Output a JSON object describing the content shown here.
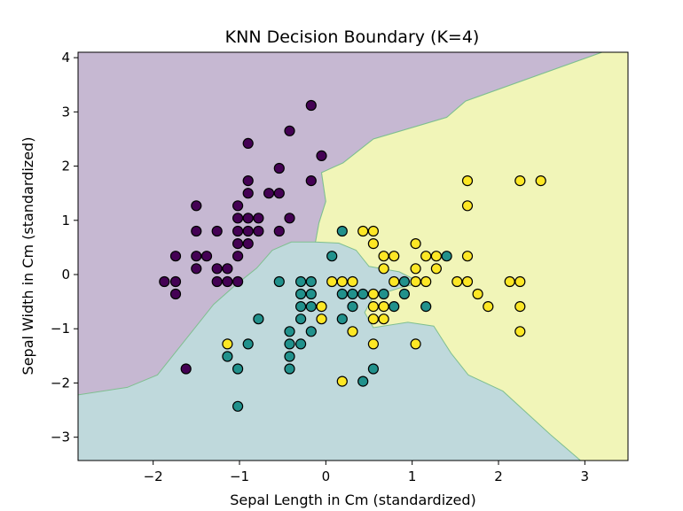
{
  "chart_data": {
    "type": "scatter",
    "title": "KNN Decision Boundary (K=4)",
    "xlabel": "Sepal Length in Cm (standardized)",
    "ylabel": "Sepal Width in Cm (standardized)",
    "xlim": [
      -2.87,
      3.5
    ],
    "ylim": [
      -3.43,
      4.1
    ],
    "x_ticks": [
      -2,
      -1,
      0,
      1,
      2,
      3
    ],
    "y_ticks": [
      -3,
      -2,
      -1,
      0,
      1,
      2,
      3,
      4
    ],
    "x_tick_labels": [
      "−2",
      "−1",
      "0",
      "1",
      "2",
      "3"
    ],
    "y_tick_labels": [
      "−3",
      "−2",
      "−1",
      "0",
      "1",
      "2",
      "3",
      "4"
    ],
    "grid": false,
    "legend": "none",
    "colors": {
      "class_0_point": "#440154",
      "class_1_point": "#21918c",
      "class_2_point": "#fde725",
      "class_0_region": "#c6b8d2",
      "class_1_region": "#bfd9dc",
      "class_2_region": "#f1f5b8",
      "region_edge": "#7fbf90"
    },
    "regions": [
      {
        "class": 0,
        "points": [
          [
            -2.87,
            -2.22
          ],
          [
            -2.87,
            4.1
          ],
          [
            3.2,
            4.1
          ],
          [
            1.62,
            3.2
          ],
          [
            1.4,
            2.9
          ],
          [
            0.55,
            2.5
          ],
          [
            0.2,
            2.06
          ],
          [
            -0.05,
            1.88
          ],
          [
            0.0,
            1.35
          ],
          [
            -0.08,
            0.95
          ],
          [
            -0.12,
            0.6
          ],
          [
            -0.4,
            0.6
          ],
          [
            -0.62,
            0.45
          ],
          [
            -0.8,
            0.12
          ],
          [
            -1.05,
            -0.2
          ],
          [
            -1.3,
            -0.55
          ],
          [
            -1.55,
            -1.05
          ],
          [
            -1.95,
            -1.85
          ],
          [
            -2.3,
            -2.08
          ]
        ]
      },
      {
        "class": 2,
        "points": [
          [
            3.2,
            4.1
          ],
          [
            3.5,
            4.1
          ],
          [
            3.5,
            -3.43
          ],
          [
            2.95,
            -3.43
          ],
          [
            2.6,
            -2.95
          ],
          [
            2.05,
            -2.15
          ],
          [
            1.65,
            -1.85
          ],
          [
            1.45,
            -1.45
          ],
          [
            1.25,
            -0.95
          ],
          [
            0.95,
            -0.88
          ],
          [
            0.55,
            -0.98
          ],
          [
            0.45,
            -0.7
          ],
          [
            0.55,
            -0.4
          ],
          [
            0.85,
            -0.25
          ],
          [
            1.1,
            -0.15
          ],
          [
            0.85,
            0.05
          ],
          [
            0.5,
            0.15
          ],
          [
            0.35,
            0.45
          ],
          [
            0.15,
            0.58
          ],
          [
            -0.12,
            0.6
          ],
          [
            -0.08,
            0.95
          ],
          [
            0.0,
            1.35
          ],
          [
            -0.05,
            1.88
          ],
          [
            0.2,
            2.06
          ],
          [
            0.55,
            2.5
          ],
          [
            1.4,
            2.9
          ],
          [
            1.62,
            3.2
          ]
        ]
      }
    ],
    "series": [
      {
        "class": 0,
        "points": [
          [
            -0.17,
            3.12
          ],
          [
            -0.42,
            2.65
          ],
          [
            -0.9,
            2.42
          ],
          [
            -0.54,
            1.96
          ],
          [
            -0.05,
            2.19
          ],
          [
            -0.17,
            1.73
          ],
          [
            -0.9,
            1.73
          ],
          [
            -0.9,
            1.5
          ],
          [
            -0.66,
            1.5
          ],
          [
            -0.54,
            1.5
          ],
          [
            -1.5,
            1.27
          ],
          [
            -1.02,
            1.27
          ],
          [
            -1.02,
            1.04
          ],
          [
            -0.9,
            1.04
          ],
          [
            -0.78,
            1.04
          ],
          [
            -0.42,
            1.04
          ],
          [
            -1.5,
            0.8
          ],
          [
            -1.26,
            0.8
          ],
          [
            -1.02,
            0.8
          ],
          [
            -0.9,
            0.8
          ],
          [
            -0.78,
            0.8
          ],
          [
            -0.54,
            0.8
          ],
          [
            -1.02,
            0.57
          ],
          [
            -0.9,
            0.57
          ],
          [
            -1.74,
            0.34
          ],
          [
            -1.5,
            0.34
          ],
          [
            -1.38,
            0.34
          ],
          [
            -1.02,
            0.34
          ],
          [
            -1.5,
            0.11
          ],
          [
            -1.26,
            0.11
          ],
          [
            -1.14,
            0.11
          ],
          [
            -1.26,
            -0.13
          ],
          [
            -1.14,
            -0.13
          ],
          [
            -1.02,
            -0.13
          ],
          [
            -1.87,
            -0.13
          ],
          [
            -1.74,
            -0.13
          ],
          [
            -1.74,
            -0.36
          ],
          [
            -1.62,
            -1.74
          ]
        ]
      },
      {
        "class": 1,
        "points": [
          [
            0.19,
            0.8
          ],
          [
            0.07,
            0.34
          ],
          [
            1.4,
            0.34
          ],
          [
            -0.54,
            -0.13
          ],
          [
            -0.29,
            -0.13
          ],
          [
            -0.17,
            -0.13
          ],
          [
            0.91,
            -0.13
          ],
          [
            -0.29,
            -0.36
          ],
          [
            -0.17,
            -0.36
          ],
          [
            0.19,
            -0.36
          ],
          [
            0.31,
            -0.36
          ],
          [
            0.43,
            -0.36
          ],
          [
            0.67,
            -0.36
          ],
          [
            0.91,
            -0.36
          ],
          [
            -0.29,
            -0.59
          ],
          [
            -0.17,
            -0.59
          ],
          [
            0.31,
            -0.59
          ],
          [
            0.79,
            -0.59
          ],
          [
            1.16,
            -0.59
          ],
          [
            -0.78,
            -0.82
          ],
          [
            -0.29,
            -0.82
          ],
          [
            0.19,
            -0.82
          ],
          [
            -0.42,
            -1.05
          ],
          [
            -0.17,
            -1.05
          ],
          [
            -0.42,
            -1.28
          ],
          [
            -0.29,
            -1.28
          ],
          [
            -0.9,
            -1.28
          ],
          [
            -1.14,
            -1.51
          ],
          [
            -0.42,
            -1.51
          ],
          [
            -1.02,
            -1.74
          ],
          [
            -0.42,
            -1.74
          ],
          [
            0.55,
            -1.74
          ],
          [
            0.43,
            -1.97
          ],
          [
            -1.02,
            -2.43
          ]
        ]
      },
      {
        "class": 2,
        "points": [
          [
            1.64,
            1.73
          ],
          [
            2.25,
            1.73
          ],
          [
            2.49,
            1.73
          ],
          [
            1.64,
            1.27
          ],
          [
            0.43,
            0.8
          ],
          [
            0.55,
            0.8
          ],
          [
            0.55,
            0.57
          ],
          [
            1.04,
            0.57
          ],
          [
            0.67,
            0.34
          ],
          [
            0.79,
            0.34
          ],
          [
            1.16,
            0.34
          ],
          [
            1.28,
            0.34
          ],
          [
            1.64,
            0.34
          ],
          [
            0.67,
            0.11
          ],
          [
            1.04,
            0.11
          ],
          [
            1.28,
            0.11
          ],
          [
            0.07,
            -0.13
          ],
          [
            0.19,
            -0.13
          ],
          [
            0.31,
            -0.13
          ],
          [
            0.79,
            -0.13
          ],
          [
            1.04,
            -0.13
          ],
          [
            1.16,
            -0.13
          ],
          [
            1.52,
            -0.13
          ],
          [
            1.64,
            -0.13
          ],
          [
            2.13,
            -0.13
          ],
          [
            2.25,
            -0.13
          ],
          [
            0.55,
            -0.36
          ],
          [
            1.76,
            -0.36
          ],
          [
            -0.05,
            -0.59
          ],
          [
            0.55,
            -0.59
          ],
          [
            0.67,
            -0.59
          ],
          [
            1.88,
            -0.59
          ],
          [
            2.25,
            -0.59
          ],
          [
            -0.05,
            -0.82
          ],
          [
            0.55,
            -0.82
          ],
          [
            0.67,
            -0.82
          ],
          [
            0.31,
            -1.05
          ],
          [
            2.25,
            -1.05
          ],
          [
            0.55,
            -1.28
          ],
          [
            1.04,
            -1.28
          ],
          [
            -1.14,
            -1.28
          ],
          [
            0.19,
            -1.97
          ]
        ]
      }
    ]
  }
}
